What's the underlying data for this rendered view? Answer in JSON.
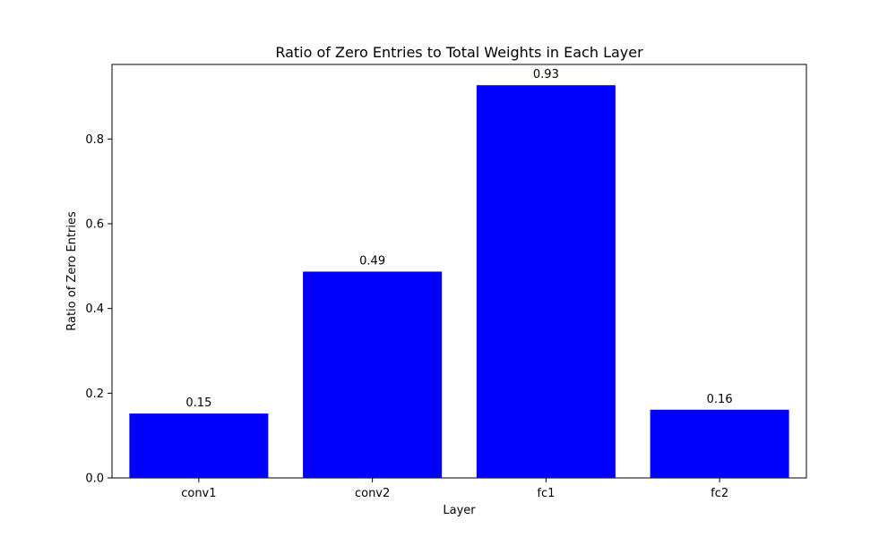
{
  "chart_data": {
    "type": "bar",
    "title": "Ratio of Zero Entries to Total Weights in Each Layer",
    "xlabel": "Layer",
    "ylabel": "Ratio of Zero Entries",
    "categories": [
      "conv1",
      "conv2",
      "fc1",
      "fc2"
    ],
    "values": [
      0.152,
      0.487,
      0.927,
      0.161
    ],
    "value_labels": [
      "0.15",
      "0.49",
      "0.93",
      "0.16"
    ],
    "ylim": [
      0,
      0.976
    ],
    "yticks": [
      0.0,
      0.2,
      0.4,
      0.6,
      0.8
    ],
    "ytick_labels": [
      "0.0",
      "0.2",
      "0.4",
      "0.6",
      "0.8"
    ],
    "bar_color": "#0000ff",
    "grid": false,
    "legend": false
  }
}
